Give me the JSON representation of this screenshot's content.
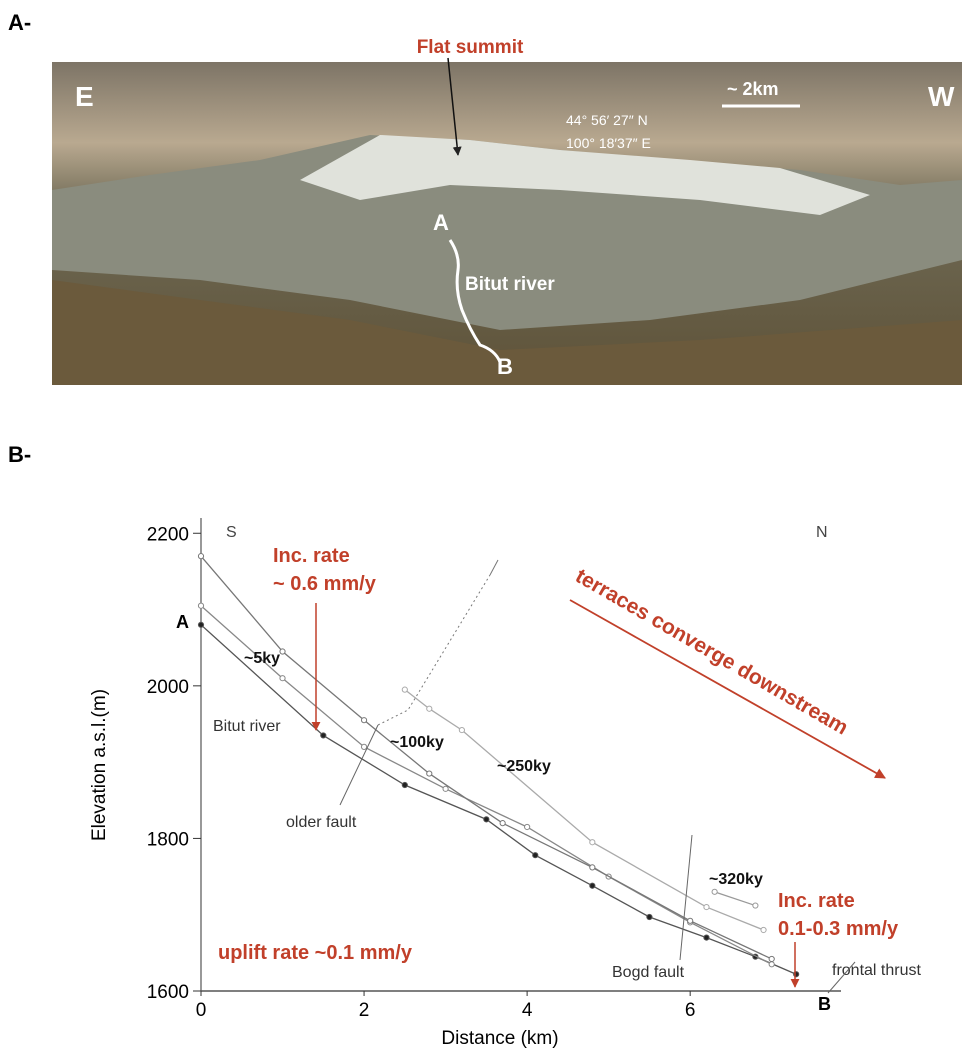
{
  "figure": {
    "panel_a": {
      "label": "A-",
      "flat_summit": "Flat summit",
      "east": "E",
      "west": "W",
      "scale": "~ 2km",
      "lat": "44° 56′ 27″ N",
      "lon": "100° 18′37″ E",
      "point_a": "A",
      "point_b": "B",
      "river": "Bitut river"
    },
    "panel_b_label": "B-"
  },
  "chart_data": {
    "type": "line",
    "x_label": "Distance (km)",
    "y_label": "Elevation a.s.l.(m)",
    "xlim": [
      0,
      7.85
    ],
    "ylim": [
      1600,
      2220
    ],
    "xticks": [
      0,
      2,
      4,
      6
    ],
    "yticks": [
      1600,
      1800,
      2000,
      2200
    ],
    "series": [
      {
        "name": "Bitut river",
        "color": "#555555",
        "x": [
          0,
          1.5,
          2.5,
          3.5,
          4.1,
          4.8,
          5.5,
          6.2,
          6.8,
          7.3
        ],
        "values": [
          2080,
          1935,
          1870,
          1825,
          1778,
          1738,
          1697,
          1670,
          1645,
          1622
        ]
      },
      {
        "name": "~5ky",
        "color": "#888888",
        "x": [
          0,
          1,
          2,
          3,
          4,
          5,
          6,
          7
        ],
        "values": [
          2105,
          2010,
          1920,
          1865,
          1815,
          1750,
          1690,
          1635
        ]
      },
      {
        "name": "~100ky",
        "color": "#777777",
        "x": [
          0,
          1,
          2,
          2.8,
          3.7,
          4.8,
          6,
          7
        ],
        "values": [
          2170,
          2045,
          1955,
          1885,
          1820,
          1762,
          1692,
          1642
        ]
      },
      {
        "name": "~250ky",
        "color": "#aaaaaa",
        "x": [
          2.5,
          2.8,
          3.2,
          4.8,
          6.2,
          6.9
        ],
        "values": [
          1995,
          1970,
          1942,
          1795,
          1710,
          1680
        ]
      },
      {
        "name": "~320ky",
        "color": "#999999",
        "x": [
          6.3,
          6.8
        ],
        "values": [
          1730,
          1712
        ]
      }
    ],
    "annotations": [
      "S",
      "N",
      "A",
      "B",
      "Inc. rate",
      "~ 0.6 mm/y",
      "terraces converge downstream",
      "older fault",
      "Bogd fault",
      "frontal thrust",
      "uplift rate ~0.1 mm/y",
      "Inc. rate",
      "0.1-0.3 mm/y"
    ]
  }
}
